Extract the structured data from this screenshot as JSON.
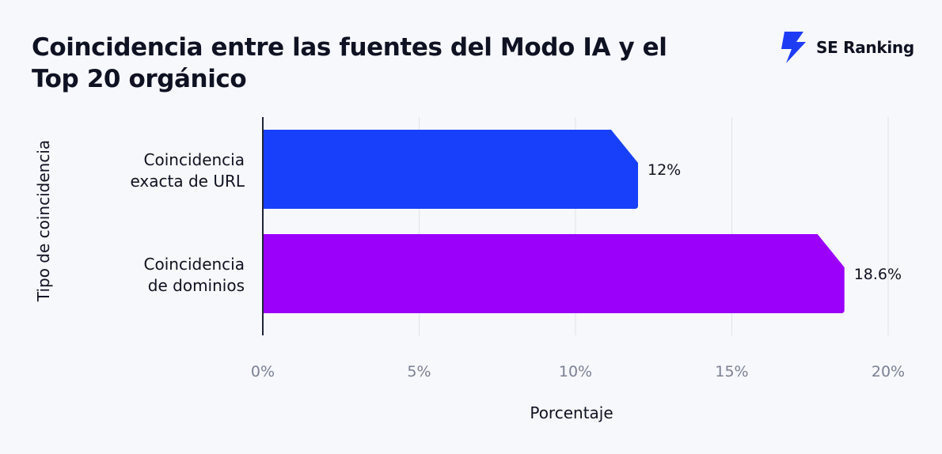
{
  "brand": {
    "name": "SE Ranking",
    "logo_icon": "lightning-bolt-icon",
    "color": "#1f3cf5"
  },
  "chart_data": {
    "type": "bar",
    "orientation": "horizontal",
    "title": "Coincidencia entre las fuentes del Modo IA y el Top 20 orgánico",
    "xlabel": "Porcentaje",
    "ylabel": "Tipo de coincidencia",
    "categories": [
      [
        "Coincidencia",
        "exacta de URL"
      ],
      [
        "Coincidencia",
        "de dominios"
      ]
    ],
    "values": [
      12,
      18.6
    ],
    "value_labels": [
      "12%",
      "18.6%"
    ],
    "colors": [
      "#1840fa",
      "#9b00fb"
    ],
    "xlim": [
      0,
      20
    ],
    "xticks": [
      0,
      5,
      10,
      15,
      20
    ],
    "xtick_labels": [
      "0%",
      "5%",
      "10%",
      "15%",
      "20%"
    ],
    "grid": true
  }
}
